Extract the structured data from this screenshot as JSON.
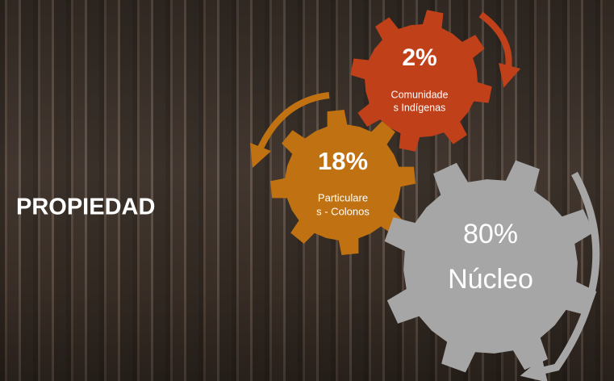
{
  "title": "PROPIEDAD",
  "gears": [
    {
      "value": "2%",
      "label": [
        "Comunidade",
        "s Indígenas"
      ]
    },
    {
      "value": "18%",
      "label": [
        "Particulare",
        "s - Colonos"
      ]
    },
    {
      "value": "80%",
      "label": [
        "Núcleo"
      ]
    }
  ]
}
